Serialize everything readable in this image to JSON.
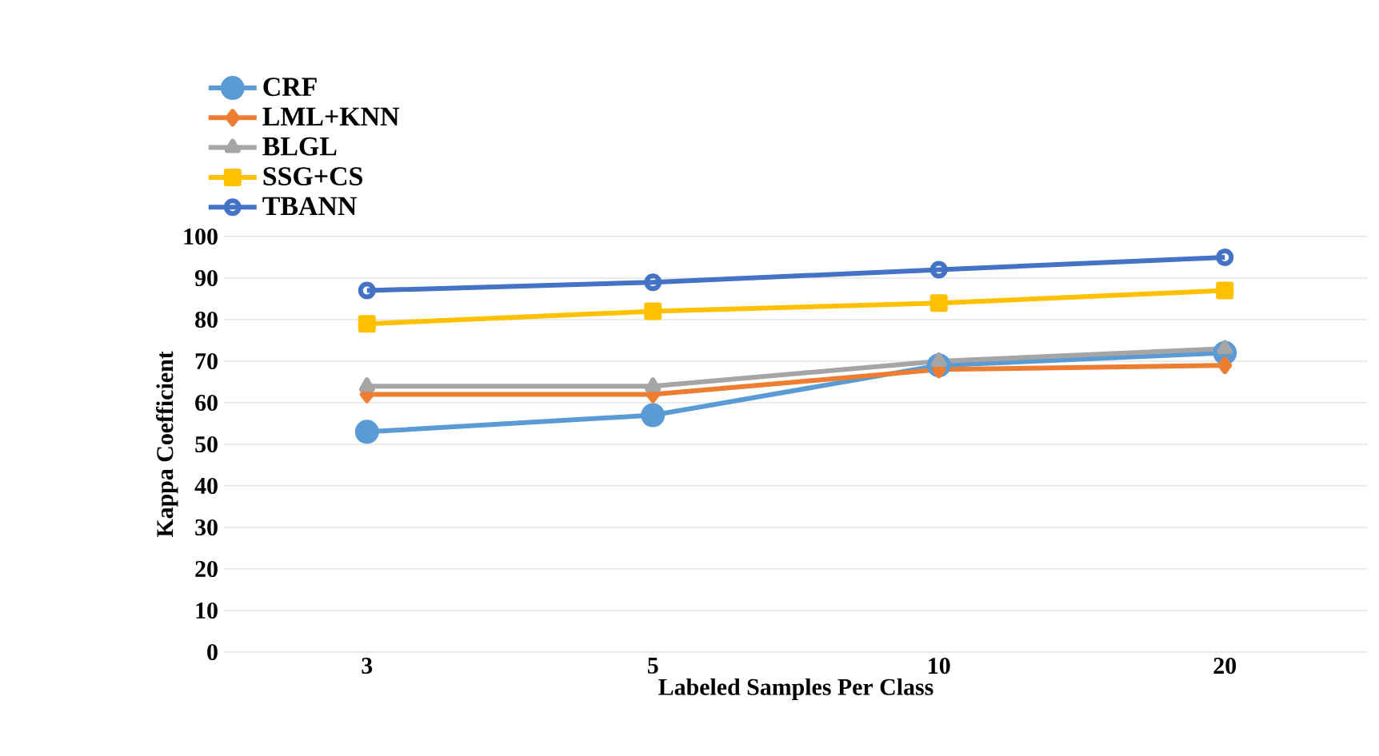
{
  "chart_data": {
    "type": "line",
    "xlabel": "Labeled  Samples Per Class",
    "ylabel": "Kappa Coefficient",
    "categories": [
      "3",
      "5",
      "10",
      "20"
    ],
    "ylim": [
      0,
      100
    ],
    "yticks": [
      0,
      10,
      20,
      30,
      40,
      50,
      60,
      70,
      80,
      90,
      100
    ],
    "grid": "y",
    "legend": "top left",
    "line_style": "solid",
    "series": [
      {
        "name": "CRF",
        "color": "#5b9bd5",
        "marker": "circle",
        "values": [
          53,
          57,
          69,
          72
        ]
      },
      {
        "name": "LML+KNN",
        "color": "#ed7d31",
        "marker": "diamond",
        "values": [
          62,
          62,
          68,
          69
        ]
      },
      {
        "name": "BLGL",
        "color": "#a5a5a5",
        "marker": "triangle",
        "values": [
          64,
          64,
          70,
          73
        ]
      },
      {
        "name": "SSG+CS",
        "color": "#ffc000",
        "marker": "square",
        "values": [
          79,
          82,
          84,
          87
        ]
      },
      {
        "name": "TBANN",
        "color": "#4472c4",
        "marker": "open circle",
        "values": [
          87,
          89,
          92,
          95
        ]
      }
    ]
  }
}
